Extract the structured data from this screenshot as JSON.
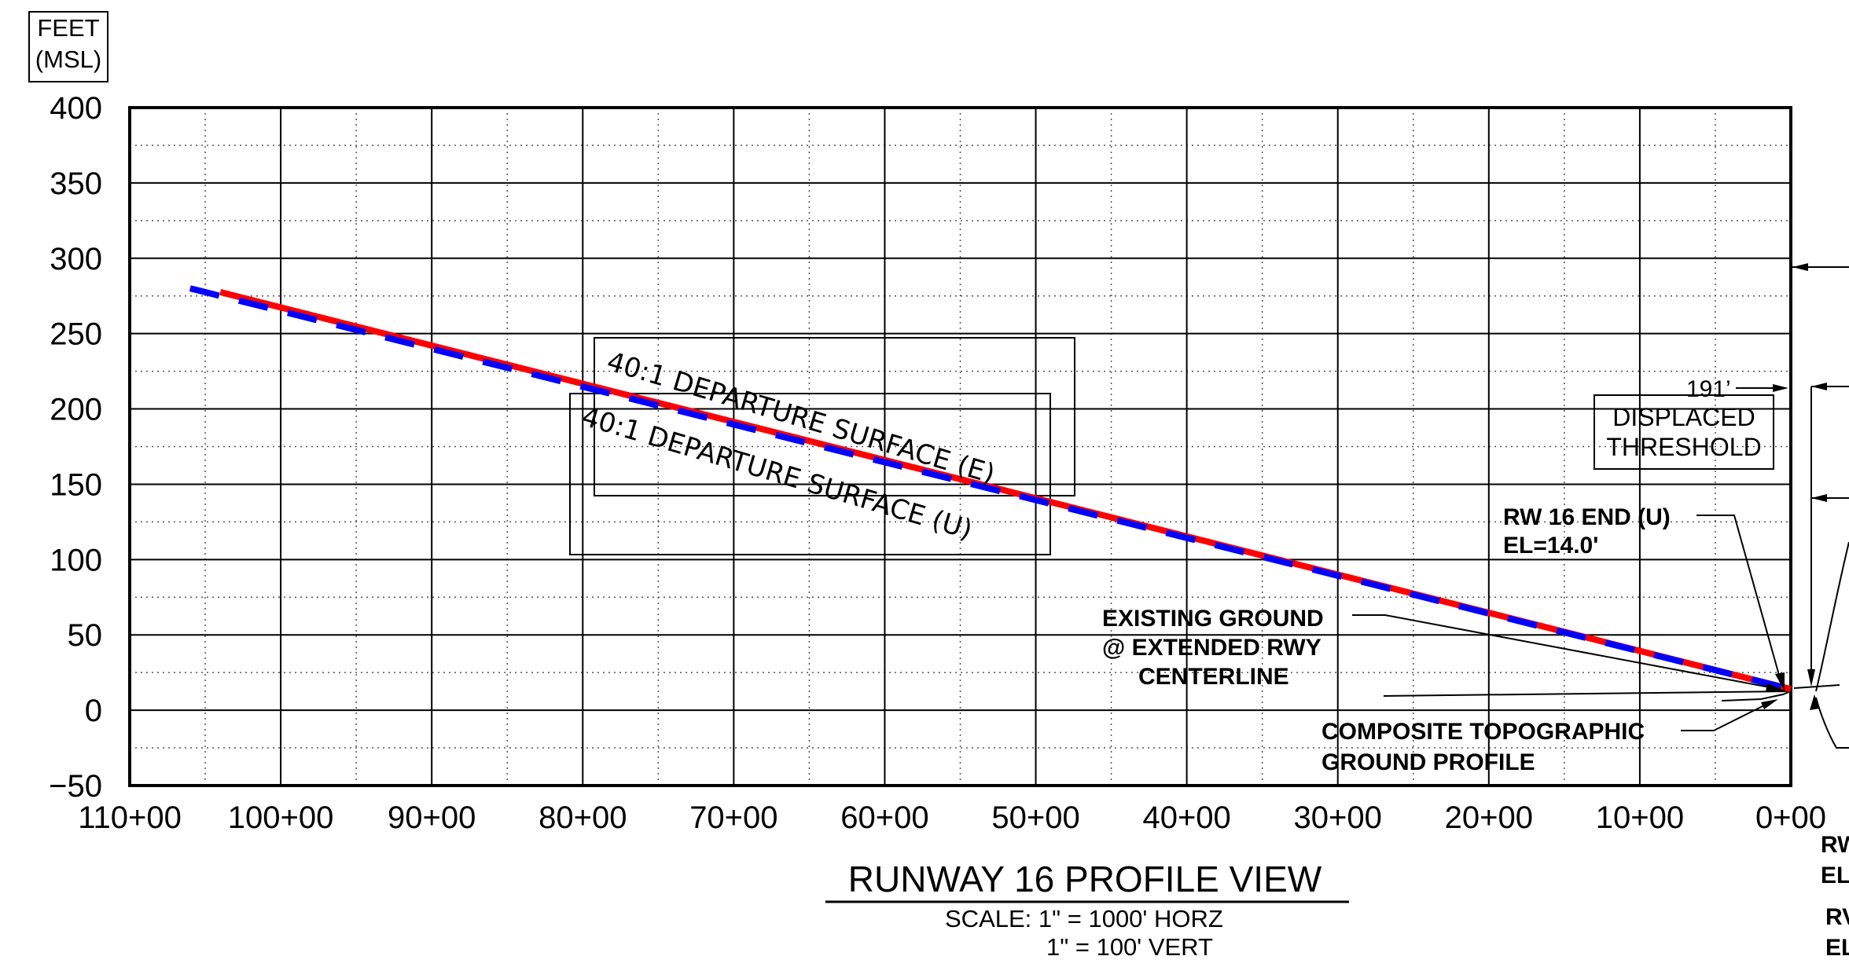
{
  "units_box": {
    "line1": "FEET",
    "line2": "(MSL)"
  },
  "y_axis": {
    "min": -50,
    "max": 400,
    "step": 50,
    "minor_step": 25,
    "tick_labels": [
      "400",
      "350",
      "300",
      "250",
      "200",
      "150",
      "100",
      "50",
      "0",
      "−50"
    ]
  },
  "x_axis": {
    "min_ft": 0,
    "max_ft": 11000,
    "major_step_ft": 1000,
    "minor_step_ft": 500,
    "reversed": true,
    "tick_labels": [
      "110+00",
      "100+00",
      "90+00",
      "80+00",
      "70+00",
      "60+00",
      "50+00",
      "40+00",
      "30+00",
      "20+00",
      "10+00",
      "0+00"
    ]
  },
  "labels": {
    "surface_e": "40:1 DEPARTURE SURFACE (E)",
    "surface_u": "40:1 DEPARTURE SURFACE (U)",
    "dim_191": "191’",
    "displaced_1": "DISPLACED",
    "displaced_2": "THRESHOLD",
    "rw16_end_1": "RW 16 END (U)",
    "rw16_end_2": "EL=14.0'",
    "existing_1": "EXISTING GROUND",
    "existing_2": "@ EXTENDED RWY",
    "existing_3": "CENTERLINE",
    "composite_1": "COMPOSITE TOPOGRAPHIC",
    "composite_2": "GROUND PROFILE",
    "cut_1": "RW",
    "cut_2": "EL",
    "cut_3": "RV",
    "cut_4": "EL"
  },
  "title": {
    "main": "RUNWAY 16 PROFILE VIEW",
    "scale_1": "SCALE: 1\" = 1000' HORZ",
    "scale_2": "1\" = 100' VERT"
  },
  "chart_data": {
    "type": "line",
    "xlabel": "",
    "ylabel": "FEET (MSL)",
    "xlim": [
      11000,
      0
    ],
    "ylim": [
      -50,
      400
    ],
    "series": [
      {
        "style": "red",
        "color": "#ff0000",
        "x": [
          10400,
          0
        ],
        "y": [
          277.5,
          14
        ]
      },
      {
        "style": "blue-dashed",
        "color": "#0000ff",
        "x": [
          10600,
          0
        ],
        "y": [
          280,
          14
        ]
      }
    ]
  }
}
